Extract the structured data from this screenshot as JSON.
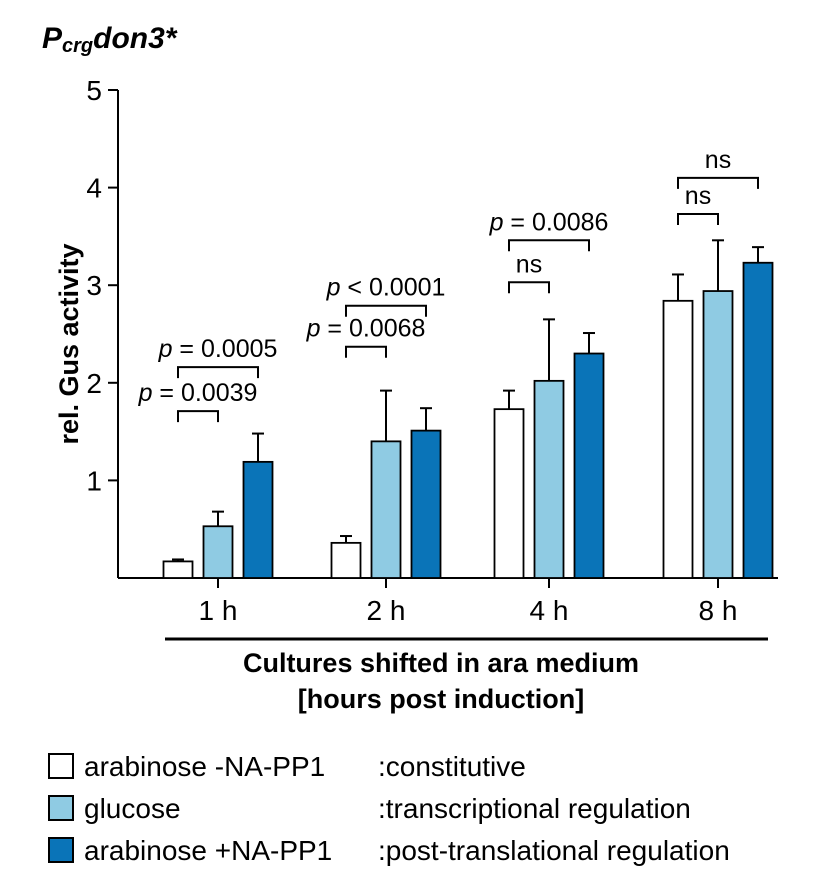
{
  "chart_data": {
    "type": "bar",
    "title": {
      "main": "P",
      "subscript": "crg",
      "suffix": "don3*"
    },
    "ylabel": "rel. Gus activity",
    "xlabel_line1": "Cultures shifted in ara medium",
    "xlabel_line2": "[hours post induction]",
    "ylim": [
      0,
      5
    ],
    "yticks": [
      1,
      2,
      3,
      4,
      5
    ],
    "categories": [
      "1 h",
      "2 h",
      "4 h",
      "8 h"
    ],
    "series": [
      {
        "name": "arabinose -NA-PP1",
        "description": ":constitutive",
        "color": "#ffffff",
        "values": [
          0.17,
          0.36,
          1.73,
          2.84
        ],
        "errors": [
          0.02,
          0.07,
          0.19,
          0.27
        ]
      },
      {
        "name": "glucose",
        "description": ":transcriptional regulation",
        "color": "#8fcbe3",
        "values": [
          0.53,
          1.4,
          2.02,
          2.94
        ],
        "errors": [
          0.15,
          0.52,
          0.63,
          0.52
        ]
      },
      {
        "name": "arabinose +NA-PP1",
        "description": ":post-translational regulation",
        "color": "#0a74b8",
        "values": [
          1.19,
          1.51,
          2.3,
          3.23
        ],
        "errors": [
          0.29,
          0.23,
          0.21,
          0.16
        ]
      }
    ],
    "annotations": [
      {
        "category": 0,
        "from_series": 0,
        "to_series": 1,
        "y": 1.71,
        "label_italic": "p",
        "label": " = 0.0039"
      },
      {
        "category": 0,
        "from_series": 0,
        "to_series": 2,
        "y": 2.16,
        "label_italic": "p",
        "label": " = 0.0005"
      },
      {
        "category": 1,
        "from_series": 0,
        "to_series": 1,
        "y": 2.37,
        "label_italic": "p",
        "label": " = 0.0068"
      },
      {
        "category": 1,
        "from_series": 0,
        "to_series": 2,
        "y": 2.79,
        "label_italic": "p",
        "label": " < 0.0001"
      },
      {
        "category": 2,
        "from_series": 0,
        "to_series": 1,
        "y": 3.03,
        "label_italic": "",
        "label": "ns"
      },
      {
        "category": 2,
        "from_series": 0,
        "to_series": 2,
        "y": 3.46,
        "label_italic": "p",
        "label": " = 0.0086"
      },
      {
        "category": 3,
        "from_series": 0,
        "to_series": 1,
        "y": 3.73,
        "label_italic": "",
        "label": "ns"
      },
      {
        "category": 3,
        "from_series": 0,
        "to_series": 2,
        "y": 4.1,
        "label_italic": "",
        "label": "ns"
      }
    ]
  }
}
